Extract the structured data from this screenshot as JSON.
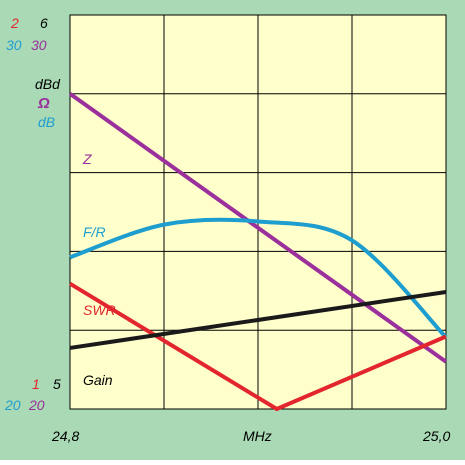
{
  "chart_data": {
    "type": "line",
    "x_label": "MHz",
    "x_ticks": [
      "24,8",
      "25,0"
    ],
    "xlim": [
      24.8,
      25.0
    ],
    "left_axis_top": {
      "swr": "2",
      "z_blue": "30",
      "z_purple": "30",
      "gain": "6"
    },
    "left_axis_bottom": {
      "swr": "1",
      "fr_blue": "20",
      "z_purple": "20",
      "gain": "5"
    },
    "units": {
      "gain": "dBd",
      "impedance": "Ω",
      "fr": "dB"
    },
    "series": [
      {
        "name": "Z",
        "color": "#9b2f9b",
        "scale": [
          20,
          30
        ],
        "x": [
          24.8,
          25.0
        ],
        "y": [
          28.0,
          21.2
        ]
      },
      {
        "name": "F/R",
        "color": "#1e9ecf",
        "scale": [
          20,
          30
        ],
        "x": [
          24.8,
          24.85,
          24.9,
          24.95,
          25.0
        ],
        "y": [
          23.85,
          24.68,
          24.76,
          24.28,
          21.82
        ]
      },
      {
        "name": "SWR",
        "color": "#e3262e",
        "scale": [
          1,
          2
        ],
        "x": [
          24.8,
          24.91,
          25.0
        ],
        "y": [
          1.318,
          1.0,
          1.184
        ]
      },
      {
        "name": "Gain",
        "color": "#1a1a1a",
        "scale": [
          5,
          6
        ],
        "x": [
          24.8,
          25.0
        ],
        "y": [
          5.155,
          5.297
        ]
      }
    ],
    "grid": true,
    "background": "#ffffcc",
    "frame_color": "#a9d9b5"
  }
}
